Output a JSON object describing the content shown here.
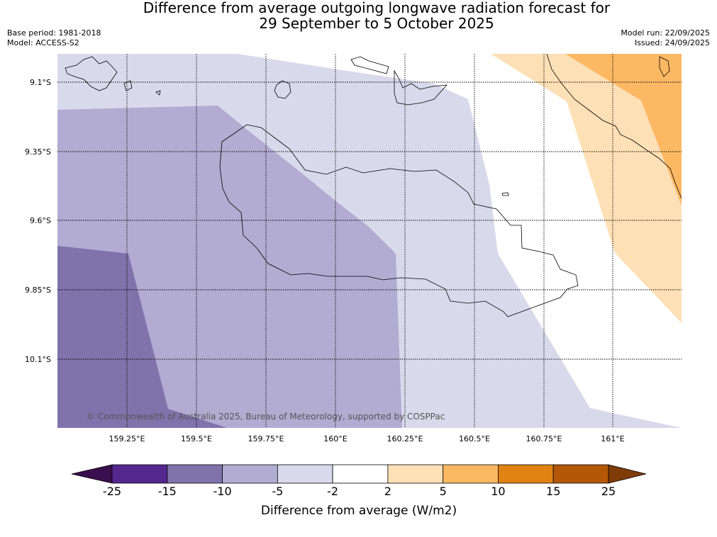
{
  "title": {
    "line1": "Difference from average outgoing longwave radiation forecast for",
    "line2": "29 September to 5 October 2025"
  },
  "meta": {
    "base_period": "Base period: 1981-2018",
    "model": "Model: ACCESS-S2",
    "model_run": "Model run: 22/09/2025",
    "issued": "Issued: 24/09/2025"
  },
  "map": {
    "lon_labels": [
      "159.25°E",
      "159.5°E",
      "159.75°E",
      "160°E",
      "160.25°E",
      "160.5°E",
      "160.75°E",
      "161°E"
    ],
    "lat_labels": [
      "9.1°S",
      "9.35°S",
      "9.6°S",
      "9.85°S",
      "10.1°S"
    ],
    "copyright": "© Commonwealth of Australia 2025, Bureau of Meteorology, supported by COSPPac"
  },
  "colorbar": {
    "tick_labels": [
      "-25",
      "-15",
      "-10",
      "-5",
      "-2",
      "2",
      "5",
      "10",
      "15",
      "25"
    ],
    "colors": [
      "#3b0f4f",
      "#54278f",
      "#8073ac",
      "#b2abd2",
      "#d8daeb",
      "#ffffff",
      "#fee0b6",
      "#fdb863",
      "#e08214",
      "#b35806",
      "#7f3b08"
    ],
    "label": "Difference from average (W/m2)"
  }
}
